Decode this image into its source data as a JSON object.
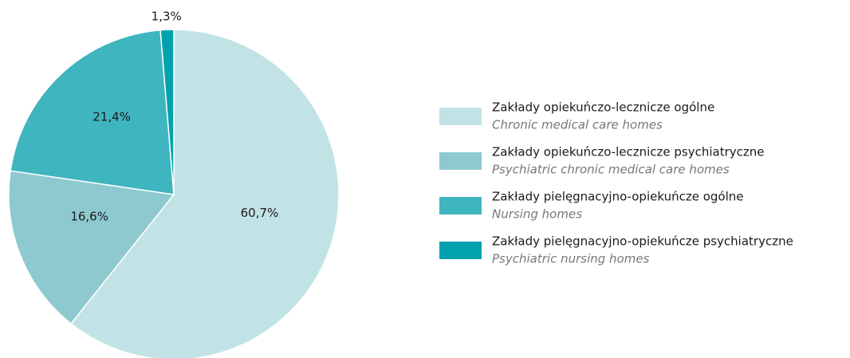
{
  "chart_data": {
    "type": "pie",
    "categories": [
      "Zakłady opiekuńczo-lecznicze ogólne",
      "Zakłady opiekuńczo-lecznicze psychiatryczne",
      "Zakłady pielęgnacyjno-opiekuńcze ogólne",
      "Zakłady pielęgnacyjno-opiekuńcze psychiatryczne"
    ],
    "category_translations": [
      "Chronic medical care homes",
      "Psychiatric chronic medical care homes",
      "Nursing homes",
      "Psychiatric nursing homes"
    ],
    "values": [
      60.7,
      16.6,
      21.4,
      1.3
    ],
    "value_labels": [
      "60,7%",
      "16,6%",
      "21,4%",
      "1,3%"
    ],
    "colors": [
      "#c2e3e6",
      "#8ec9cf",
      "#3fb5bf",
      "#00a3ad"
    ],
    "legend": "right"
  }
}
